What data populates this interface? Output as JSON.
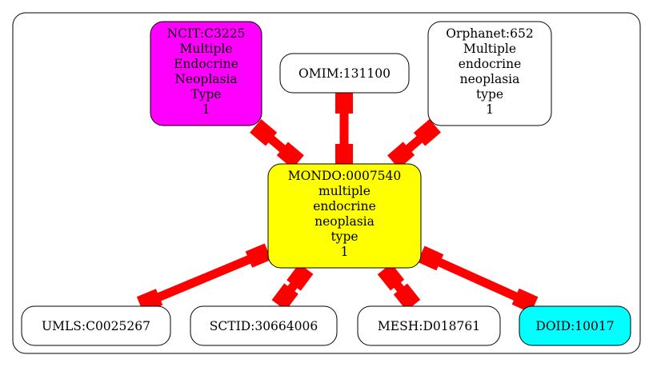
{
  "center": {
    "lines": [
      "MONDO:0007540",
      "multiple",
      "endocrine",
      "neoplasia",
      "type",
      "1"
    ],
    "fill": "#ffff00"
  },
  "nodes": [
    {
      "id": "ncit",
      "lines": [
        "NCIT:C3225",
        "Multiple",
        "Endocrine",
        "Neoplasia",
        "Type",
        "1"
      ],
      "fill": "#ff00ff"
    },
    {
      "id": "omim",
      "lines": [
        "OMIM:131100"
      ],
      "fill": "#ffffff"
    },
    {
      "id": "orphanet",
      "lines": [
        "Orphanet:652",
        "Multiple",
        "endocrine",
        "neoplasia",
        "type",
        "1"
      ],
      "fill": "#ffffff"
    },
    {
      "id": "umls",
      "lines": [
        "UMLS:C0025267"
      ],
      "fill": "#ffffff"
    },
    {
      "id": "sctid",
      "lines": [
        "SCTID:30664006"
      ],
      "fill": "#ffffff"
    },
    {
      "id": "mesh",
      "lines": [
        "MESH:D018761"
      ],
      "fill": "#ffffff"
    },
    {
      "id": "doid",
      "lines": [
        "DOID:10017"
      ],
      "fill": "#00ffff"
    }
  ],
  "edge_color": "#ff0000"
}
